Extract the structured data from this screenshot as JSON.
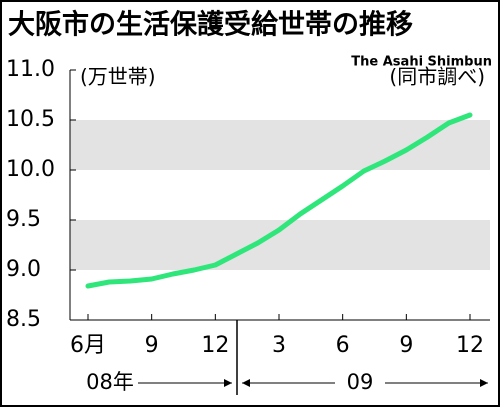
{
  "chart_data": {
    "type": "line",
    "title": "大阪市の生活保護受給世帯の推移",
    "y_label": "(万世帯)",
    "source": "(同市調べ)",
    "credit": "The Asahi Shimbun",
    "categories": [
      "6月",
      null,
      null,
      "9",
      null,
      null,
      "12",
      null,
      null,
      "3",
      null,
      null,
      "6",
      null,
      null,
      "9",
      null,
      null,
      "12"
    ],
    "year_labels": [
      "08年",
      "09"
    ],
    "series": [
      {
        "color": "#2ee67a",
        "values": [
          8.84,
          8.88,
          8.89,
          8.91,
          8.96,
          9.0,
          9.05,
          9.16,
          9.27,
          9.4,
          9.56,
          9.7,
          9.84,
          9.99,
          10.09,
          10.2,
          10.33,
          10.47,
          10.55
        ]
      }
    ],
    "ylim": [
      8.5,
      11.0
    ],
    "yticks": [
      8.5,
      {
        "value": 9,
        "label": "9.0"
      },
      9.5,
      {
        "value": 10,
        "label": "10.0"
      },
      10.5,
      {
        "value": 11,
        "label": "11.0"
      }
    ],
    "grid": "bands"
  }
}
